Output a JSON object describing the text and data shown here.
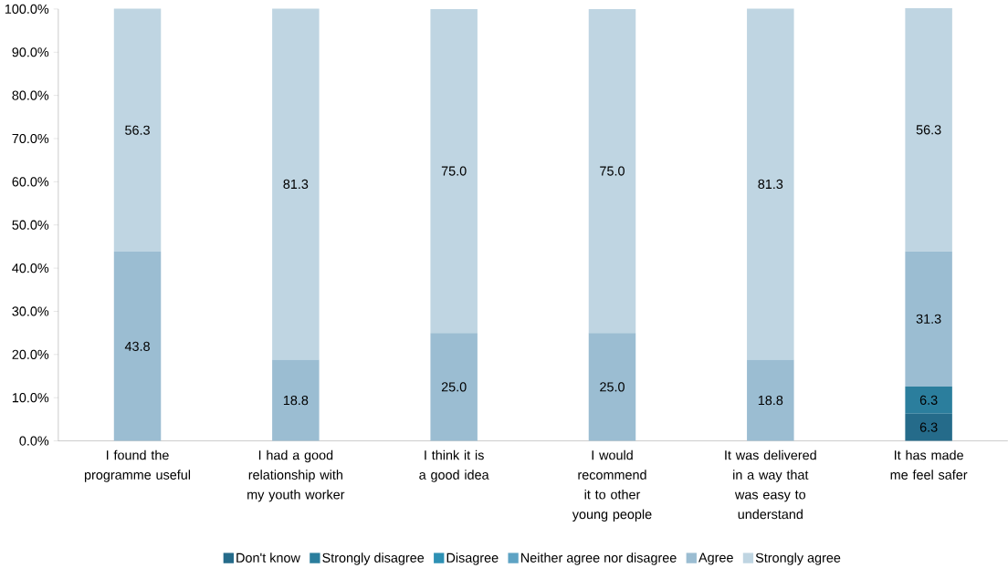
{
  "chart_data": {
    "type": "bar",
    "stacked": true,
    "categories": [
      "I found the programme useful",
      "I had a good relationship with my youth worker",
      "I think it is a good idea",
      "I would recommend it to other young people",
      "It was delivered in a way that was easy to understand",
      "It has made me feel safer"
    ],
    "series": [
      {
        "name": "Don't know",
        "color": "#256b8a",
        "values": [
          0,
          0,
          0,
          0,
          0,
          6.3
        ],
        "value_labels": [
          null,
          null,
          null,
          null,
          null,
          "6.3"
        ]
      },
      {
        "name": "Strongly disagree",
        "color": "#2b7e9d",
        "values": [
          0,
          0,
          0,
          0,
          0,
          6.3
        ],
        "value_labels": [
          null,
          null,
          null,
          null,
          null,
          "6.3"
        ]
      },
      {
        "name": "Disagree",
        "color": "#2e91b4",
        "values": [
          0,
          0,
          0,
          0,
          0,
          0
        ],
        "value_labels": [
          null,
          null,
          null,
          null,
          null,
          null
        ]
      },
      {
        "name": "Neither agree nor disagree",
        "color": "#5ea3c4",
        "values": [
          0,
          0,
          0,
          0,
          0,
          0
        ],
        "value_labels": [
          null,
          null,
          null,
          null,
          null,
          null
        ]
      },
      {
        "name": "Agree",
        "color": "#9bbdd2",
        "values": [
          43.8,
          18.8,
          25.0,
          25.0,
          18.8,
          31.3
        ],
        "value_labels": [
          "43.8",
          "18.8",
          "25.0",
          "25.0",
          "18.8",
          "31.3"
        ]
      },
      {
        "name": "Strongly agree",
        "color": "#bfd5e2",
        "values": [
          56.3,
          81.3,
          75.0,
          75.0,
          81.3,
          56.3
        ],
        "value_labels": [
          "56.3",
          "81.3",
          "75.0",
          "75.0",
          "81.3",
          "56.3"
        ]
      }
    ],
    "ylim": [
      0,
      100
    ],
    "yticks": [
      {
        "value": 0,
        "label": "0.0%"
      },
      {
        "value": 10,
        "label": "10.0%"
      },
      {
        "value": 20,
        "label": "20.0%"
      },
      {
        "value": 30,
        "label": "30.0%"
      },
      {
        "value": 40,
        "label": "40.0%"
      },
      {
        "value": 50,
        "label": "50.0%"
      },
      {
        "value": 60,
        "label": "60.0%"
      },
      {
        "value": 70,
        "label": "70.0%"
      },
      {
        "value": 80,
        "label": "80.0%"
      },
      {
        "value": 90,
        "label": "90.0%"
      },
      {
        "value": 100,
        "label": "100.0%"
      }
    ],
    "grid": false,
    "legend": "bottom"
  }
}
